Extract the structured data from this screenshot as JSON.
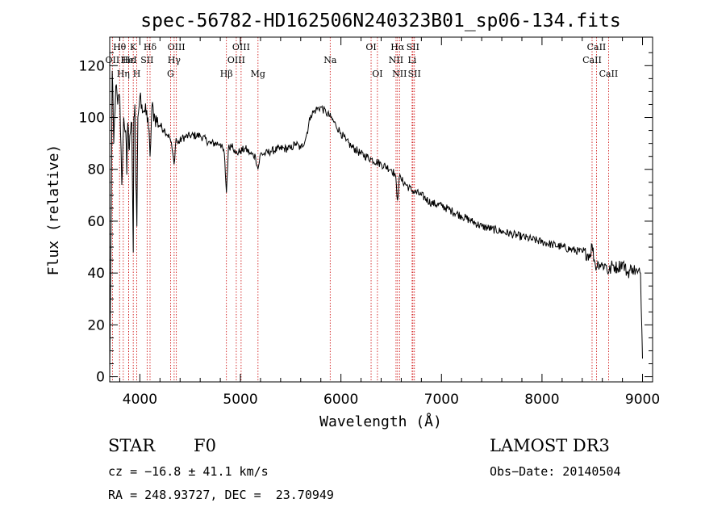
{
  "chart_data": {
    "type": "line",
    "title": "spec-56782-HD162506N240323B01_sp06-134.fits",
    "xlabel": "Wavelength (Å)",
    "ylabel": "Flux (relative)",
    "xlim": [
      3700,
      9100
    ],
    "ylim": [
      -2,
      131
    ],
    "xticks": [
      4000,
      5000,
      6000,
      7000,
      8000,
      9000
    ],
    "xtick_labels": [
      "4000",
      "5000",
      "6000",
      "7000",
      "8000",
      "9000"
    ],
    "yticks": [
      0,
      20,
      40,
      60,
      80,
      100,
      120
    ],
    "ytick_labels": [
      "0",
      "20",
      "40",
      "60",
      "80",
      "100",
      "120"
    ],
    "grid": false,
    "line_color": "#000000",
    "marker_color": "#cc0000",
    "series": [
      {
        "name": "flux",
        "x": [
          3700,
          3710,
          3725,
          3740,
          3760,
          3780,
          3800,
          3820,
          3840,
          3860,
          3870,
          3880,
          3890,
          3900,
          3920,
          3934,
          3940,
          3950,
          3960,
          3970,
          3980,
          4000,
          4020,
          4050,
          4080,
          4101,
          4120,
          4150,
          4200,
          4250,
          4300,
          4320,
          4340,
          4360,
          4380,
          4420,
          4500,
          4600,
          4700,
          4800,
          4840,
          4861,
          4880,
          4920,
          4950,
          5000,
          5050,
          5100,
          5150,
          5175,
          5200,
          5250,
          5300,
          5400,
          5500,
          5550,
          5600,
          5650,
          5700,
          5750,
          5800,
          5850,
          5900,
          5950,
          6000,
          6050,
          6100,
          6200,
          6300,
          6400,
          6500,
          6540,
          6563,
          6580,
          6600,
          6700,
          6800,
          6900,
          7000,
          7100,
          7200,
          7300,
          7400,
          7500,
          7600,
          7700,
          7800,
          7900,
          8000,
          8100,
          8200,
          8300,
          8400,
          8480,
          8498,
          8520,
          8542,
          8560,
          8600,
          8640,
          8662,
          8700,
          8750,
          8800,
          8850,
          8900,
          8950,
          8980,
          9000
        ],
        "y": [
          0,
          40,
          118,
          90,
          112,
          105,
          108,
          74,
          100,
          95,
          78,
          98,
          88,
          93,
          98,
          48,
          100,
          105,
          75,
          58,
          100,
          108,
          105,
          102,
          100,
          85,
          104,
          100,
          97,
          95,
          92,
          88,
          82,
          92,
          90,
          92,
          93,
          93,
          90,
          90,
          86,
          71,
          88,
          90,
          86,
          87,
          88,
          86,
          85,
          80,
          86,
          86,
          87,
          88,
          88,
          90,
          88,
          92,
          101,
          103,
          104,
          102,
          100,
          97,
          94,
          91,
          89,
          86,
          84,
          82,
          80,
          78,
          68,
          77,
          76,
          72,
          70,
          67,
          66,
          64,
          62,
          60,
          58,
          57,
          56,
          55,
          54,
          53,
          52,
          51,
          50,
          49,
          48,
          47,
          51,
          45,
          42,
          44,
          43,
          43,
          40,
          43,
          42,
          44,
          40,
          42,
          40,
          40,
          7
        ]
      }
    ],
    "annotations": [
      {
        "label": "Hθ",
        "x": 3798,
        "row": 1
      },
      {
        "label": "OII",
        "x": 3727,
        "row": 2
      },
      {
        "label": "Hη",
        "x": 3835,
        "row": 3
      },
      {
        "label": "Hε",
        "x": 3889,
        "row": 2
      },
      {
        "label": "HeI",
        "x": 3889,
        "row": 2
      },
      {
        "label": "K",
        "x": 3934,
        "row": 1
      },
      {
        "label": "H",
        "x": 3969,
        "row": 3
      },
      {
        "label": "SII",
        "x": 4072,
        "row": 2
      },
      {
        "label": "Hδ",
        "x": 4101,
        "row": 1
      },
      {
        "label": "OIII",
        "x": 4363,
        "row": 1
      },
      {
        "label": "Hγ",
        "x": 4341,
        "row": 2
      },
      {
        "label": "G",
        "x": 4305,
        "row": 3
      },
      {
        "label": "Hβ",
        "x": 4861,
        "row": 3
      },
      {
        "label": "OIII",
        "x": 4959,
        "row": 2
      },
      {
        "label": "OIII",
        "x": 5007,
        "row": 1
      },
      {
        "label": "Mg",
        "x": 5175,
        "row": 3
      },
      {
        "label": "Na",
        "x": 5893,
        "row": 2
      },
      {
        "label": "OI",
        "x": 6300,
        "row": 1
      },
      {
        "label": "OI",
        "x": 6363,
        "row": 3
      },
      {
        "label": "Hα",
        "x": 6563,
        "row": 1
      },
      {
        "label": "NII",
        "x": 6548,
        "row": 2
      },
      {
        "label": "NII",
        "x": 6583,
        "row": 3
      },
      {
        "label": "SII",
        "x": 6716,
        "row": 1
      },
      {
        "label": "Li",
        "x": 6708,
        "row": 2
      },
      {
        "label": "SII",
        "x": 6731,
        "row": 3
      },
      {
        "label": "CaII",
        "x": 8542,
        "row": 1
      },
      {
        "label": "CaII",
        "x": 8498,
        "row": 2
      },
      {
        "label": "CaII",
        "x": 8662,
        "row": 3
      }
    ]
  },
  "info": {
    "class_label": "STAR",
    "subclass": "F0",
    "survey": "LAMOST DR3",
    "redshift": "cz = −16.8 ± 41.1 km/s",
    "obs_date": "Obs−Date: 20140504",
    "coords": "RA = 248.93727, DEC =  23.70949"
  }
}
